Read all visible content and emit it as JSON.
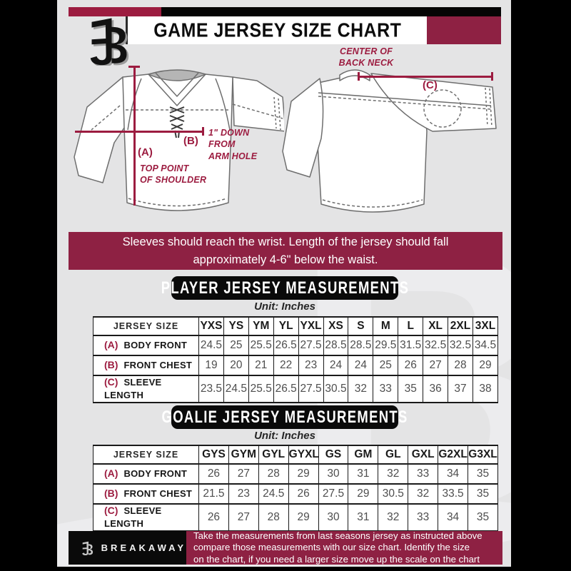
{
  "header": {
    "title": "GAME JERSEY SIZE CHART"
  },
  "diagram": {
    "front": {
      "marker_a": "(A)",
      "marker_b": "(B)",
      "note_a": "TOP POINT\nOF SHOULDER",
      "note_b": "1\" DOWN\nFROM\nARM HOLE"
    },
    "back": {
      "marker_c": "(C)",
      "note_back_neck": "CENTER OF\nBACK NECK"
    }
  },
  "banner": {
    "line1": "Sleeves should reach the wrist. Length of the jersey should fall",
    "line2": "approximately 4-6\" below the waist."
  },
  "player_table": {
    "section_title": "PLAYER JERSEY MEASUREMENTS",
    "unit_label": "Unit: Inches",
    "header": [
      "JERSEY SIZE",
      "YXS",
      "YS",
      "YM",
      "YL",
      "YXL",
      "XS",
      "S",
      "M",
      "L",
      "XL",
      "2XL",
      "3XL"
    ],
    "rows": [
      {
        "key": "(A)",
        "label": "BODY FRONT",
        "values": [
          "24.5",
          "25",
          "25.5",
          "26.5",
          "27.5",
          "28.5",
          "28.5",
          "29.5",
          "31.5",
          "32.5",
          "32.5",
          "34.5"
        ]
      },
      {
        "key": "(B)",
        "label": "FRONT CHEST",
        "values": [
          "19",
          "20",
          "21",
          "22",
          "23",
          "24",
          "24",
          "25",
          "26",
          "27",
          "28",
          "29"
        ]
      },
      {
        "key": "(C)",
        "label": "SLEEVE LENGTH",
        "values": [
          "23.5",
          "24.5",
          "25.5",
          "26.5",
          "27.5",
          "30.5",
          "32",
          "33",
          "35",
          "36",
          "37",
          "38"
        ]
      }
    ]
  },
  "goalie_table": {
    "section_title": "GOALIE JERSEY MEASUREMENTS",
    "unit_label": "Unit: Inches",
    "header": [
      "JERSEY SIZE",
      "GYS",
      "GYM",
      "GYL",
      "GYXL",
      "GS",
      "GM",
      "GL",
      "GXL",
      "G2XL",
      "G3XL"
    ],
    "rows": [
      {
        "key": "(A)",
        "label": "BODY FRONT",
        "values": [
          "26",
          "27",
          "28",
          "29",
          "30",
          "31",
          "32",
          "33",
          "34",
          "35"
        ]
      },
      {
        "key": "(B)",
        "label": "FRONT CHEST",
        "values": [
          "21.5",
          "23",
          "24.5",
          "26",
          "27.5",
          "29",
          "30.5",
          "32",
          "33.5",
          "35"
        ]
      },
      {
        "key": "(C)",
        "label": "SLEEVE LENGTH",
        "values": [
          "26",
          "27",
          "28",
          "29",
          "30",
          "31",
          "32",
          "33",
          "34",
          "35"
        ]
      }
    ]
  },
  "footer": {
    "brand": "BREAKAWAY",
    "lines": [
      "Take the measurements from last seasons jersey as instructed above",
      "compare those measurements  with our size chart. Identify the size",
      "on the chart, if you need a larger size move up the scale on the chart"
    ]
  }
}
